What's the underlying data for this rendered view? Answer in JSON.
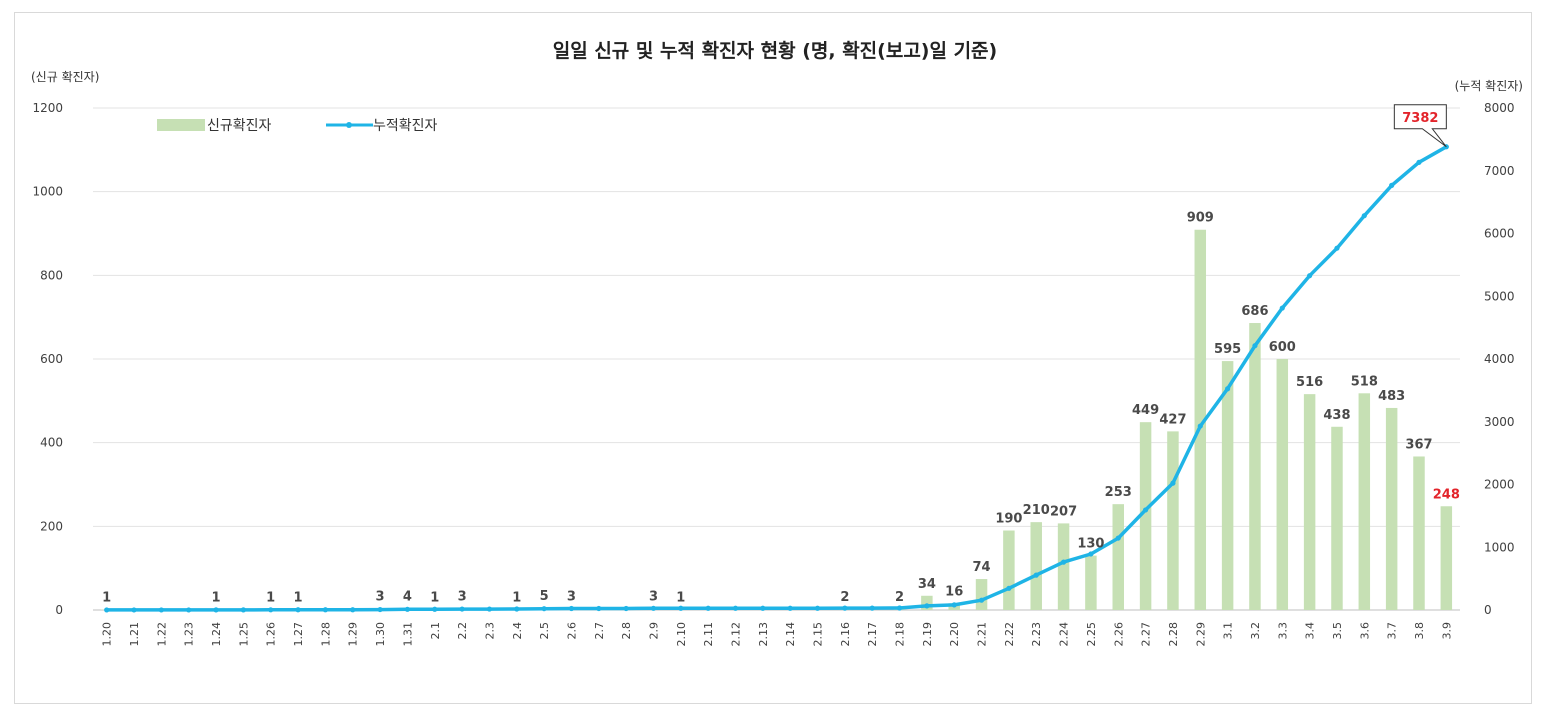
{
  "chart_data": {
    "type": "bar+line",
    "title": "일일 신규 및 누적 확진자 현황 (명, 확진(보고)일 기준)",
    "ylabel_left": "(신규 확진자)",
    "ylabel_right": "(누적 확진자)",
    "ylim_left": [
      0,
      1200
    ],
    "yticks_left": [
      0,
      200,
      400,
      600,
      800,
      1000,
      1200
    ],
    "ylim_right": [
      0,
      8000
    ],
    "yticks_right": [
      0,
      1000,
      2000,
      3000,
      4000,
      5000,
      6000,
      7000,
      8000
    ],
    "legend": {
      "bar": "신규확진자",
      "line": "누적확진자",
      "position": "top-left"
    },
    "colors": {
      "bar": "#c6e0b4",
      "line": "#1fb4e6",
      "grid": "#e3e3e3",
      "highlight": "#e3242b"
    },
    "categories": [
      "1.20",
      "1.21",
      "1.22",
      "1.23",
      "1.24",
      "1.25",
      "1.26",
      "1.27",
      "1.28",
      "1.29",
      "1.30",
      "1.31",
      "2.1",
      "2.2",
      "2.3",
      "2.4",
      "2.5",
      "2.6",
      "2.7",
      "2.8",
      "2.9",
      "2.10",
      "2.11",
      "2.12",
      "2.13",
      "2.14",
      "2.15",
      "2.16",
      "2.17",
      "2.18",
      "2.19",
      "2.20",
      "2.21",
      "2.22",
      "2.23",
      "2.24",
      "2.25",
      "2.26",
      "2.27",
      "2.28",
      "2.29",
      "3.1",
      "3.2",
      "3.3",
      "3.4",
      "3.5",
      "3.6",
      "3.7",
      "3.8",
      "3.9"
    ],
    "series": [
      {
        "name": "신규확진자",
        "type": "bar",
        "axis": "left",
        "values": [
          1,
          0,
          0,
          0,
          1,
          0,
          1,
          1,
          0,
          0,
          3,
          4,
          1,
          3,
          0,
          1,
          5,
          3,
          0,
          0,
          3,
          1,
          0,
          0,
          0,
          0,
          0,
          2,
          0,
          2,
          34,
          16,
          74,
          190,
          210,
          207,
          130,
          253,
          449,
          427,
          909,
          595,
          686,
          600,
          516,
          438,
          518,
          483,
          367,
          248
        ],
        "labels": [
          "1",
          "",
          "",
          "",
          "1",
          "",
          "1",
          "1",
          "",
          "",
          "3",
          "4",
          "1",
          "3",
          "",
          "1",
          "5",
          "3",
          "",
          "",
          "3",
          "1",
          "",
          "",
          "",
          "",
          "",
          "2",
          "",
          "2",
          "34",
          "16",
          "74",
          "190",
          "210",
          "207",
          "130",
          "253",
          "449",
          "427",
          "909",
          "595",
          "686",
          "600",
          "516",
          "438",
          "518",
          "483",
          "367",
          "248"
        ]
      },
      {
        "name": "누적확진자",
        "type": "line",
        "axis": "right",
        "values": [
          1,
          1,
          1,
          1,
          2,
          2,
          3,
          4,
          4,
          4,
          7,
          11,
          12,
          15,
          15,
          16,
          21,
          24,
          24,
          24,
          27,
          28,
          28,
          28,
          28,
          28,
          28,
          30,
          30,
          32,
          66,
          82,
          156,
          346,
          556,
          763,
          893,
          1146,
          1595,
          2022,
          2931,
          3526,
          4212,
          4812,
          5328,
          5766,
          6284,
          6767,
          7134,
          7382
        ],
        "end_label": "7382"
      }
    ]
  }
}
